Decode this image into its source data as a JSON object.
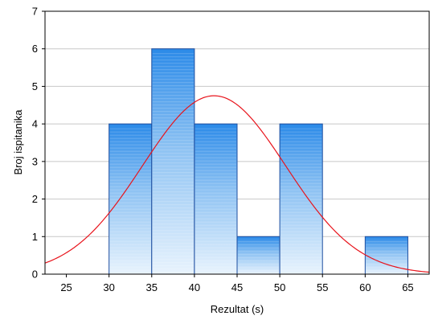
{
  "chart_data": {
    "type": "bar",
    "subtype": "histogram",
    "xlabel": "Rezultat (s)",
    "ylabel": "Broj ispitanika",
    "xlim": [
      22.5,
      67.5
    ],
    "ylim": [
      0,
      7
    ],
    "x_ticks": [
      25,
      30,
      35,
      40,
      45,
      50,
      55,
      60,
      65
    ],
    "y_ticks": [
      0,
      1,
      2,
      3,
      4,
      5,
      6,
      7
    ],
    "bins": [
      {
        "start": 30,
        "end": 35,
        "count": 4
      },
      {
        "start": 35,
        "end": 40,
        "count": 6
      },
      {
        "start": 40,
        "end": 45,
        "count": 4
      },
      {
        "start": 45,
        "end": 50,
        "count": 1
      },
      {
        "start": 50,
        "end": 55,
        "count": 4
      },
      {
        "start": 60,
        "end": 65,
        "count": 1
      }
    ],
    "fit_curve": {
      "type": "normal",
      "mean": 42.3,
      "sd": 8.4,
      "peak": 4.75
    },
    "grid": {
      "horizontal": true,
      "vertical": false
    },
    "colors": {
      "bar_top": "#2b8ae8",
      "bar_bottom": "#e8f3fd",
      "bar_edge": "#1f4fa0",
      "curve": "#e8141c",
      "grid": "#c8c8c8"
    }
  }
}
